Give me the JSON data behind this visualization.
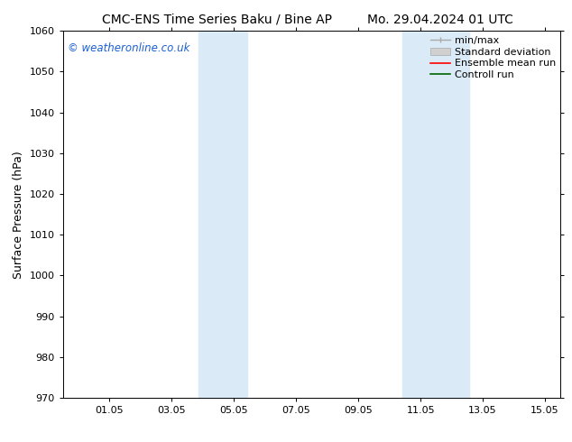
{
  "title_left": "CMC-ENS Time Series Baku / Bine AP",
  "title_right": "Mo. 29.04.2024 01 UTC",
  "ylabel": "Surface Pressure (hPa)",
  "xlim_left": 0,
  "xlim_right": 14,
  "ylim": [
    970,
    1060
  ],
  "yticks": [
    970,
    980,
    990,
    1000,
    1010,
    1020,
    1030,
    1040,
    1050,
    1060
  ],
  "xtick_labels": [
    "01.05",
    "03.05",
    "05.05",
    "07.05",
    "09.05",
    "11.05",
    "13.05",
    "15.05"
  ],
  "xtick_positions": [
    1,
    3,
    5,
    7,
    9,
    11,
    13,
    15
  ],
  "shaded_bands": [
    {
      "x_start": 3.85,
      "x_end": 5.42
    },
    {
      "x_start": 10.42,
      "x_end": 12.57
    }
  ],
  "shaded_color": "#daeaf6",
  "watermark": "© weatheronline.co.uk",
  "watermark_color": "#1a5fd4",
  "bg_color": "#ffffff",
  "title_fontsize": 10,
  "axis_label_fontsize": 9,
  "tick_fontsize": 8,
  "legend_fontsize": 8,
  "watermark_fontsize": 8.5
}
